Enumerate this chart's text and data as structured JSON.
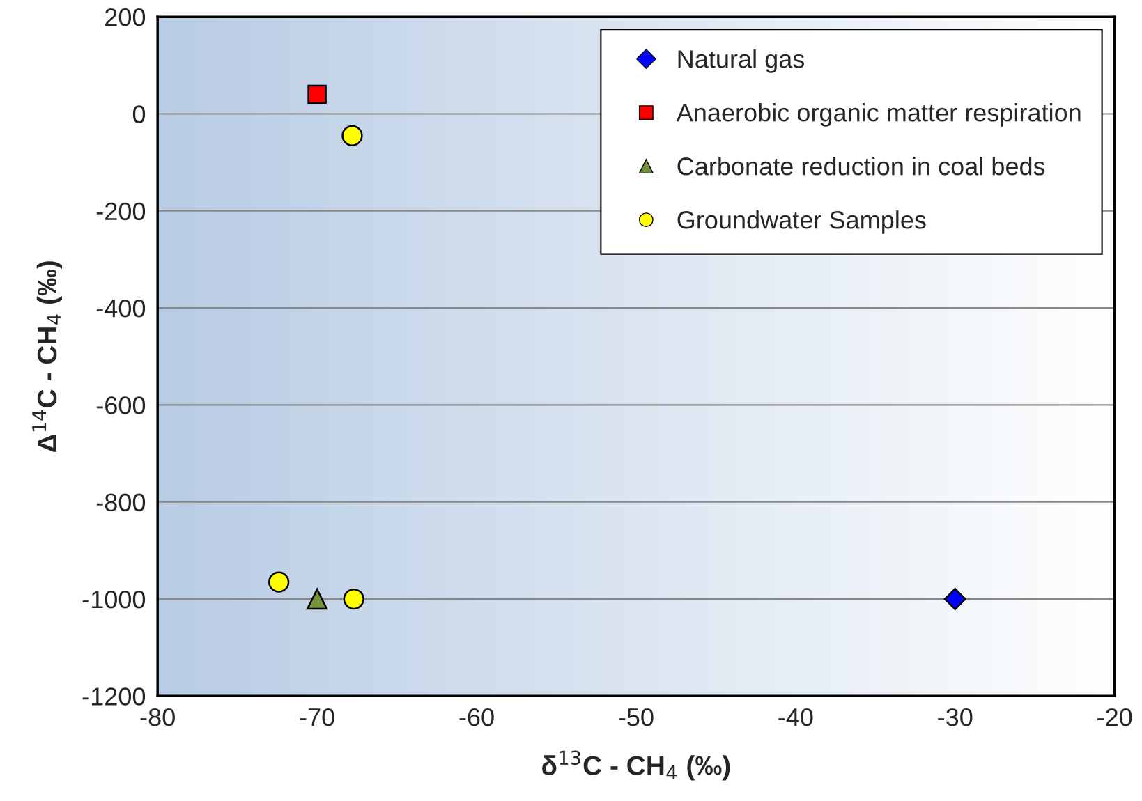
{
  "chart_data": {
    "type": "scatter",
    "xlabel": "δ$^{13}$C - CH$_{4}$ (‰)",
    "ylabel": "Δ$^{14}$C - CH$_{4}$ (‰)",
    "xlim": [
      -80,
      -20
    ],
    "xticks": [
      -80,
      -70,
      -60,
      -50,
      -40,
      -30,
      -20
    ],
    "ylim": [
      -1200,
      200
    ],
    "yticks": [
      -1200,
      -1000,
      -800,
      -600,
      -400,
      -200,
      0,
      200
    ],
    "grid": "y",
    "legend": "top right",
    "series": [
      {
        "name": "Natural gas",
        "color": "#0000ff",
        "marker": "diamond",
        "x": [
          -30
        ],
        "values": [
          -1000
        ]
      },
      {
        "name": "Anaerobic organic matter respiration",
        "color": "#ff0000",
        "marker": "square",
        "x": [
          -70
        ],
        "values": [
          40
        ]
      },
      {
        "name": "Carbonate reduction in coal beds",
        "color": "#77933c",
        "marker": "triangle",
        "x": [
          -70
        ],
        "values": [
          -1000
        ]
      },
      {
        "name": "Groundwater Samples",
        "color": "#ffff00",
        "marker": "circle",
        "x": [
          -67.8,
          -72.4,
          -67.7
        ],
        "values": [
          -45,
          -965,
          -1000
        ]
      }
    ]
  }
}
